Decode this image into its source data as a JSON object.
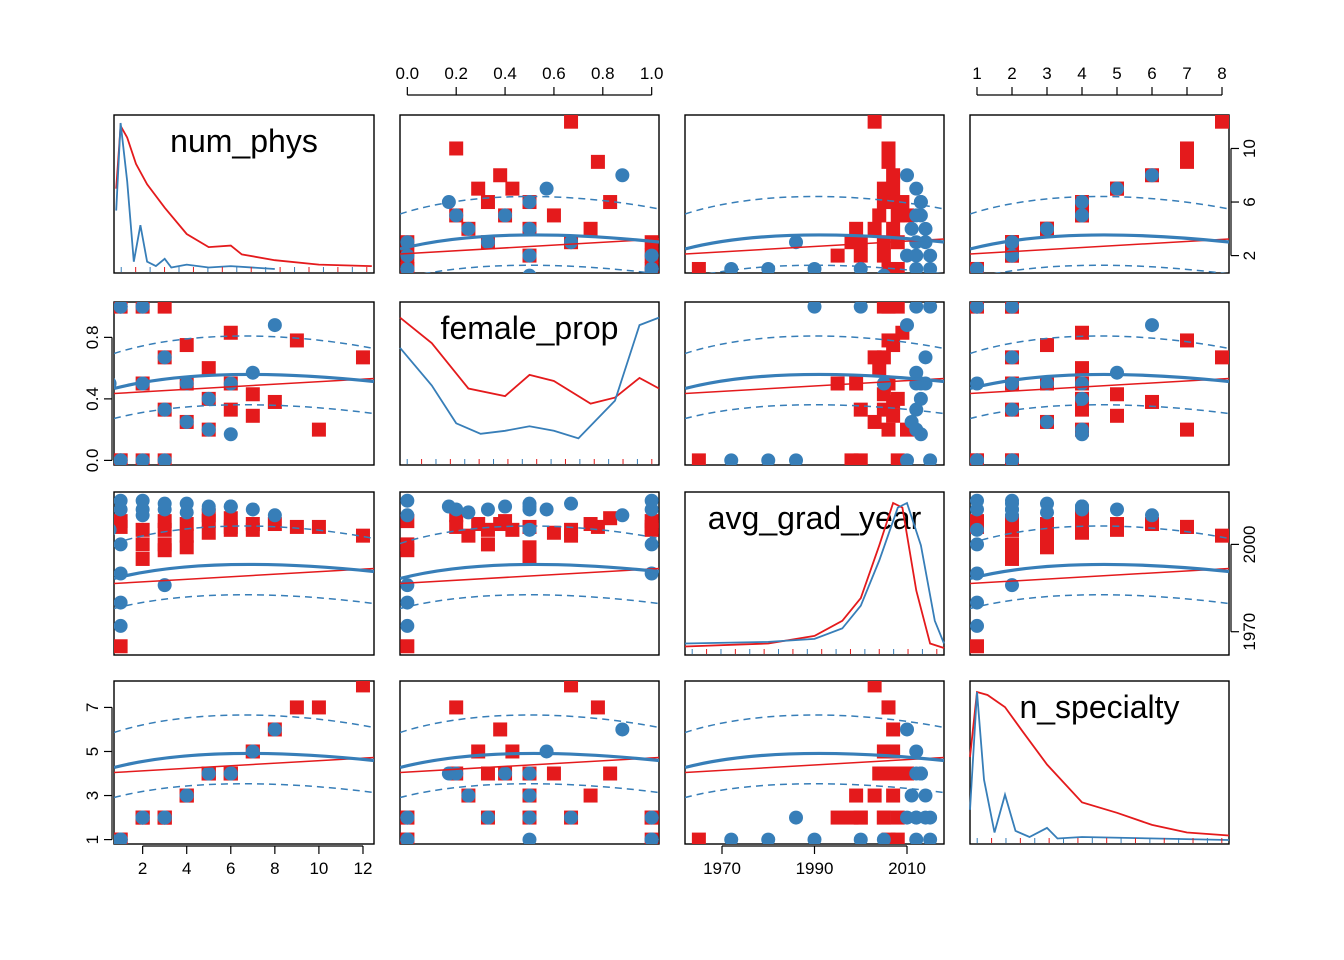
{
  "chart_data": {
    "type": "scatter",
    "variables": [
      "num_phys",
      "female_prop",
      "avg_grad_year",
      "n_specialty"
    ],
    "colors": {
      "group_a": "#E41A1C",
      "group_b": "#377EB8"
    },
    "ranges": {
      "num_phys": [
        0.7,
        12.5
      ],
      "female_prop": [
        -0.03,
        1.03
      ],
      "avg_grad_year": [
        1962,
        2018
      ],
      "n_specialty": [
        0.8,
        8.2
      ]
    },
    "ticks": {
      "num_phys": [
        2,
        4,
        6,
        8,
        10,
        12
      ],
      "female_prop": [
        0.0,
        0.2,
        0.4,
        0.6,
        0.8,
        1.0
      ],
      "avg_grad_year": [
        1970,
        1990,
        2010
      ],
      "n_specialty": [
        1,
        2,
        3,
        4,
        5,
        6,
        7,
        8
      ]
    },
    "tick_labels": {
      "top_female_prop": [
        "0.0",
        "0.2",
        "0.4",
        "0.6",
        "0.8",
        "1.0"
      ],
      "top_n_specialty": [
        "1",
        "2",
        "3",
        "4",
        "5",
        "6",
        "7",
        "8"
      ],
      "right_num_phys": [
        "2",
        "6",
        "10"
      ],
      "left_female_prop": [
        "0.0",
        "0.4",
        "0.8"
      ],
      "right_avg_grad_year": [
        "1970",
        "2000"
      ],
      "left_n_specialty": [
        "1",
        "3",
        "5",
        "7"
      ],
      "bottom_num_phys": [
        "2",
        "4",
        "6",
        "8",
        "10",
        "12"
      ],
      "bottom_avg_grad_year": [
        "1970",
        "1990",
        "2010"
      ]
    },
    "red_points": [
      [
        1,
        0,
        2008
      ],
      [
        1,
        1,
        2006
      ],
      [
        1,
        0,
        1965
      ],
      [
        2,
        0.5,
        1995
      ],
      [
        2,
        0,
        2000
      ],
      [
        2,
        1,
        2005
      ],
      [
        3,
        0.67,
        2005
      ],
      [
        3,
        0.33,
        2000
      ],
      [
        3,
        0,
        1998
      ],
      [
        3,
        1,
        2008
      ],
      [
        4,
        0.5,
        1999
      ],
      [
        4,
        0.25,
        2003
      ],
      [
        4,
        0.75,
        2007
      ],
      [
        5,
        0.6,
        2004
      ],
      [
        5,
        0.4,
        2008
      ],
      [
        5,
        0.2,
        2010
      ],
      [
        6,
        0.5,
        2006
      ],
      [
        6,
        0.33,
        2005
      ],
      [
        6,
        0.83,
        2009
      ],
      [
        7,
        0.43,
        2005
      ],
      [
        7,
        0.29,
        2007
      ],
      [
        8,
        0.38,
        2007
      ],
      [
        9,
        0.78,
        2006
      ],
      [
        10,
        0.2,
        2006
      ],
      [
        12,
        0.67,
        2003
      ]
    ],
    "blue_points": [
      [
        1,
        0,
        2015
      ],
      [
        1,
        1,
        2012
      ],
      [
        1,
        0,
        1972
      ],
      [
        1,
        1,
        1990
      ],
      [
        1,
        0,
        1980
      ],
      [
        1,
        1,
        2000
      ],
      [
        2,
        0.5,
        2012
      ],
      [
        2,
        0,
        2010
      ],
      [
        2,
        1,
        2015
      ],
      [
        3,
        0.33,
        2012
      ],
      [
        3,
        0.67,
        2014
      ],
      [
        3,
        0,
        1986
      ],
      [
        4,
        0.5,
        2014
      ],
      [
        4,
        0.25,
        2011
      ],
      [
        5,
        0.4,
        2013
      ],
      [
        5,
        0.2,
        2012
      ],
      [
        6,
        0.5,
        2013
      ],
      [
        6,
        0.17,
        2013
      ],
      [
        7,
        0.57,
        2012
      ],
      [
        8,
        0.88,
        2010
      ],
      [
        0.5,
        0.5,
        2005
      ]
    ],
    "density": {
      "num_phys_red": [
        [
          0.8,
          0.55
        ],
        [
          1.0,
          0.98
        ],
        [
          1.3,
          0.9
        ],
        [
          1.7,
          0.72
        ],
        [
          2.2,
          0.58
        ],
        [
          3,
          0.42
        ],
        [
          4,
          0.24
        ],
        [
          5,
          0.15
        ],
        [
          6,
          0.16
        ],
        [
          6.5,
          0.1
        ],
        [
          8,
          0.06
        ],
        [
          10,
          0.03
        ],
        [
          12.4,
          0.02
        ]
      ],
      "num_phys_blue": [
        [
          0.8,
          0.4
        ],
        [
          1.0,
          1.0
        ],
        [
          1.3,
          0.6
        ],
        [
          1.6,
          0.05
        ],
        [
          1.9,
          0.3
        ],
        [
          2.2,
          0.05
        ],
        [
          2.6,
          0.02
        ],
        [
          3,
          0.07
        ],
        [
          3.3,
          0.01
        ],
        [
          4,
          0.03
        ],
        [
          5,
          0.01
        ],
        [
          6,
          0.02
        ],
        [
          8,
          0.0
        ]
      ],
      "female_prop_red": [
        [
          -0.03,
          0.95
        ],
        [
          0.1,
          0.78
        ],
        [
          0.25,
          0.48
        ],
        [
          0.4,
          0.43
        ],
        [
          0.5,
          0.57
        ],
        [
          0.6,
          0.53
        ],
        [
          0.75,
          0.38
        ],
        [
          0.85,
          0.42
        ],
        [
          0.95,
          0.55
        ],
        [
          1.03,
          0.48
        ]
      ],
      "female_prop_blue": [
        [
          -0.03,
          0.75
        ],
        [
          0.1,
          0.5
        ],
        [
          0.2,
          0.25
        ],
        [
          0.3,
          0.18
        ],
        [
          0.4,
          0.2
        ],
        [
          0.5,
          0.23
        ],
        [
          0.6,
          0.2
        ],
        [
          0.7,
          0.15
        ],
        [
          0.85,
          0.4
        ],
        [
          0.95,
          0.9
        ],
        [
          1.03,
          0.95
        ]
      ],
      "avg_grad_year_red": [
        [
          1962,
          0.03
        ],
        [
          1980,
          0.05
        ],
        [
          1990,
          0.1
        ],
        [
          1996,
          0.2
        ],
        [
          2000,
          0.35
        ],
        [
          2004,
          0.7
        ],
        [
          2007,
          0.98
        ],
        [
          2009,
          0.95
        ],
        [
          2012,
          0.4
        ],
        [
          2015,
          0.05
        ],
        [
          2018,
          0.02
        ]
      ],
      "avg_grad_year_blue": [
        [
          1962,
          0.05
        ],
        [
          1980,
          0.06
        ],
        [
          1990,
          0.08
        ],
        [
          1996,
          0.15
        ],
        [
          2000,
          0.3
        ],
        [
          2004,
          0.6
        ],
        [
          2008,
          0.95
        ],
        [
          2010,
          0.98
        ],
        [
          2013,
          0.7
        ],
        [
          2016,
          0.2
        ],
        [
          2018,
          0.05
        ]
      ],
      "n_specialty_red": [
        [
          0.8,
          0.55
        ],
        [
          1.0,
          0.98
        ],
        [
          1.3,
          0.96
        ],
        [
          1.8,
          0.88
        ],
        [
          2.3,
          0.72
        ],
        [
          3,
          0.5
        ],
        [
          4,
          0.25
        ],
        [
          5,
          0.18
        ],
        [
          6,
          0.1
        ],
        [
          7,
          0.05
        ],
        [
          8.2,
          0.03
        ]
      ],
      "n_specialty_blue": [
        [
          0.8,
          0.2
        ],
        [
          1.0,
          0.98
        ],
        [
          1.2,
          0.4
        ],
        [
          1.5,
          0.05
        ],
        [
          1.8,
          0.3
        ],
        [
          2.1,
          0.06
        ],
        [
          2.5,
          0.02
        ],
        [
          3,
          0.08
        ],
        [
          3.3,
          0.01
        ],
        [
          4,
          0.02
        ],
        [
          8.2,
          0.0
        ]
      ]
    }
  }
}
